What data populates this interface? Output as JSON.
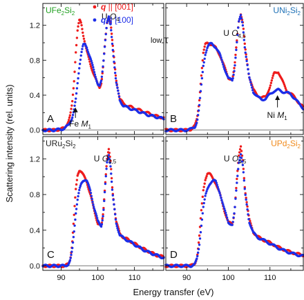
{
  "figure": {
    "ylabel": "Scattering intensity (rel. units)",
    "xlabel": "Energy transfer (eV)",
    "condition": "low T",
    "legend": [
      {
        "label": "q || [001]",
        "color": "#ee1c1c"
      },
      {
        "label": "q || [100]",
        "color": "#1d2ee8"
      }
    ],
    "x_ticks": [
      "90",
      "100",
      "110"
    ],
    "y_ticks": [
      "0.0",
      "0.4",
      "0.8",
      "1.2"
    ]
  },
  "chart_data": [
    {
      "type": "scatter",
      "panel_letter": "A",
      "compound": {
        "base": "UFe",
        "sub": "2",
        "mid": "Si",
        "sub2": "2"
      },
      "compound_color": "#21a021",
      "xlim": [
        85,
        118
      ],
      "ylim": [
        -0.05,
        1.45
      ],
      "annotations": [
        {
          "text_main": "U ",
          "text_italic": "O",
          "text_sub": "4",
          "x": 101,
          "y": 1.27
        },
        {
          "text_main": "Fe ",
          "text_italic": "M",
          "text_sub": "1",
          "x": 92.2,
          "y": 0.04,
          "arrow_x": 93.9,
          "arrow_from": 0.14,
          "arrow_to": 0.26
        }
      ],
      "series": [
        {
          "name": "q || [001]",
          "color": "#ee1c1c",
          "x": [
            85,
            88,
            90,
            91,
            92,
            92.5,
            93,
            93.5,
            94,
            94.5,
            95,
            95.5,
            96,
            97,
            98,
            99,
            100,
            100.5,
            101,
            101.5,
            102,
            102.5,
            103,
            103.5,
            104,
            105,
            106,
            107,
            108,
            110,
            112,
            114,
            116,
            118
          ],
          "y": [
            0.0,
            0.0,
            0.01,
            0.03,
            0.1,
            0.17,
            0.3,
            0.55,
            0.9,
            1.15,
            1.26,
            1.22,
            1.1,
            0.9,
            0.75,
            0.63,
            0.52,
            0.49,
            0.55,
            0.75,
            1.0,
            1.22,
            1.3,
            1.24,
            1.0,
            0.58,
            0.36,
            0.3,
            0.28,
            0.25,
            0.22,
            0.19,
            0.16,
            0.14
          ]
        },
        {
          "name": "q || [100]",
          "color": "#1d2ee8",
          "x": [
            85,
            88,
            90,
            91,
            92,
            93,
            93.5,
            94,
            94.5,
            95,
            95.5,
            96,
            96.5,
            97,
            98,
            99,
            100,
            100.5,
            101,
            101.5,
            102,
            102.5,
            103,
            103.5,
            104,
            105,
            106,
            107,
            108,
            110,
            112,
            114,
            116,
            118
          ],
          "y": [
            0.0,
            0.0,
            0.01,
            0.02,
            0.06,
            0.14,
            0.22,
            0.35,
            0.55,
            0.74,
            0.88,
            0.97,
            0.98,
            0.95,
            0.82,
            0.67,
            0.53,
            0.5,
            0.56,
            0.76,
            1.02,
            1.23,
            1.29,
            1.2,
            0.97,
            0.55,
            0.34,
            0.28,
            0.26,
            0.23,
            0.2,
            0.17,
            0.15,
            0.13
          ]
        }
      ]
    },
    {
      "type": "scatter",
      "panel_letter": "B",
      "compound": {
        "base": "UNi",
        "sub": "2",
        "mid": "Si",
        "sub2": "2"
      },
      "compound_color": "#1b6fb5",
      "xlim": [
        85,
        118
      ],
      "ylim": [
        -0.05,
        1.45
      ],
      "annotations": [
        {
          "text_main": "U ",
          "text_italic": "O",
          "text_sub": "4,5",
          "x": 98.8,
          "y": 1.08
        },
        {
          "text_main": "Ni ",
          "text_italic": "M",
          "text_sub": "1",
          "x": 109.3,
          "y": 0.14,
          "arrow_x": 111.8,
          "arrow_from": 0.26,
          "arrow_to": 0.4
        }
      ],
      "series": [
        {
          "name": "q || [001]",
          "color": "#ee1c1c",
          "x": [
            85,
            88,
            90,
            91,
            92,
            92.5,
            93,
            93.5,
            94,
            94.5,
            95,
            95.5,
            96,
            97,
            98,
            99,
            100,
            101,
            101.5,
            102,
            102.5,
            103,
            103.5,
            104,
            105,
            106,
            107,
            108,
            109,
            110,
            111,
            112,
            113,
            114,
            115,
            116,
            117,
            118
          ],
          "y": [
            0.0,
            0.0,
            0.0,
            0.01,
            0.05,
            0.13,
            0.32,
            0.62,
            0.88,
            0.98,
            1.0,
            0.99,
            0.98,
            0.94,
            0.86,
            0.73,
            0.6,
            0.58,
            0.72,
            1.0,
            1.25,
            1.33,
            1.22,
            0.95,
            0.62,
            0.46,
            0.4,
            0.37,
            0.38,
            0.5,
            0.65,
            0.67,
            0.56,
            0.45,
            0.42,
            0.37,
            0.31,
            0.26
          ]
        },
        {
          "name": "q || [100]",
          "color": "#1d2ee8",
          "x": [
            85,
            88,
            90,
            91,
            92,
            92.5,
            93,
            93.5,
            94,
            94.5,
            95,
            95.5,
            96,
            97,
            98,
            99,
            100,
            101,
            101.5,
            102,
            102.5,
            103,
            103.5,
            104,
            105,
            106,
            107,
            108,
            109,
            110,
            111,
            112,
            113,
            114,
            115,
            116,
            117,
            118
          ],
          "y": [
            0.0,
            0.0,
            0.0,
            0.01,
            0.04,
            0.1,
            0.25,
            0.5,
            0.74,
            0.88,
            0.95,
            0.98,
            0.99,
            0.95,
            0.86,
            0.72,
            0.59,
            0.57,
            0.71,
            0.98,
            1.23,
            1.31,
            1.2,
            0.93,
            0.6,
            0.44,
            0.38,
            0.35,
            0.36,
            0.41,
            0.45,
            0.46,
            0.44,
            0.43,
            0.41,
            0.36,
            0.3,
            0.25
          ]
        }
      ]
    },
    {
      "type": "scatter",
      "panel_letter": "C",
      "compound": {
        "base": "URu",
        "sub": "2",
        "mid": "Si",
        "sub2": "2"
      },
      "compound_color": "#222222",
      "xlim": [
        85,
        118
      ],
      "ylim": [
        -0.05,
        1.45
      ],
      "annotations": [
        {
          "text_main": "U ",
          "text_italic": "O",
          "text_sub": "4,5",
          "x": 98.9,
          "y": 1.17
        }
      ],
      "series": [
        {
          "name": "q || [001]",
          "color": "#ee1c1c",
          "x": [
            85,
            88,
            90,
            91,
            92,
            92.5,
            93,
            93.5,
            94,
            94.5,
            95,
            95.5,
            96,
            97,
            98,
            99,
            100,
            101,
            101.5,
            102,
            102.5,
            103,
            103.5,
            104,
            105,
            106,
            107,
            108,
            110,
            112,
            114,
            116,
            118
          ],
          "y": [
            0.0,
            0.0,
            0.0,
            0.0,
            0.02,
            0.08,
            0.25,
            0.55,
            0.85,
            1.02,
            1.08,
            1.06,
            1.02,
            0.94,
            0.8,
            0.62,
            0.48,
            0.44,
            0.6,
            0.92,
            1.2,
            1.3,
            1.16,
            0.85,
            0.5,
            0.36,
            0.32,
            0.3,
            0.25,
            0.2,
            0.16,
            0.12,
            0.1
          ]
        },
        {
          "name": "q || [100]",
          "color": "#1d2ee8",
          "x": [
            85,
            88,
            90,
            91,
            92,
            92.5,
            93,
            93.5,
            94,
            94.5,
            95,
            95.5,
            96,
            96.5,
            97,
            98,
            99,
            100,
            101,
            101.5,
            102,
            102.5,
            103,
            103.5,
            104,
            105,
            106,
            107,
            108,
            110,
            112,
            114,
            116,
            118
          ],
          "y": [
            0.0,
            0.0,
            0.0,
            0.0,
            0.02,
            0.06,
            0.17,
            0.38,
            0.6,
            0.75,
            0.85,
            0.92,
            0.96,
            0.97,
            0.95,
            0.84,
            0.65,
            0.5,
            0.45,
            0.58,
            0.88,
            1.15,
            1.25,
            1.12,
            0.82,
            0.48,
            0.35,
            0.31,
            0.29,
            0.24,
            0.19,
            0.15,
            0.12,
            0.09
          ]
        }
      ]
    },
    {
      "type": "scatter",
      "panel_letter": "D",
      "compound": {
        "base": "UPd",
        "sub": "2",
        "mid": "Si",
        "sub2": "2"
      },
      "compound_color": "#f08a1c",
      "xlim": [
        85,
        118
      ],
      "ylim": [
        -0.05,
        1.45
      ],
      "annotations": [
        {
          "text_main": "U ",
          "text_italic": "O",
          "text_sub": "4,5",
          "x": 98.9,
          "y": 1.17
        }
      ],
      "series": [
        {
          "name": "q || [001]",
          "color": "#ee1c1c",
          "x": [
            85,
            88,
            90,
            91,
            92,
            92.5,
            93,
            93.5,
            94,
            94.5,
            95,
            95.5,
            96,
            97,
            98,
            99,
            100,
            101,
            101.5,
            102,
            102.5,
            103,
            103.5,
            104,
            105,
            106,
            107,
            108,
            110,
            112,
            114,
            116,
            118
          ],
          "y": [
            0.0,
            0.0,
            0.0,
            0.0,
            0.03,
            0.1,
            0.3,
            0.6,
            0.85,
            0.98,
            1.04,
            1.03,
            1.0,
            0.93,
            0.8,
            0.63,
            0.49,
            0.46,
            0.62,
            0.95,
            1.22,
            1.33,
            1.18,
            0.86,
            0.52,
            0.38,
            0.33,
            0.3,
            0.26,
            0.21,
            0.17,
            0.14,
            0.12
          ]
        },
        {
          "name": "q || [100]",
          "color": "#1d2ee8",
          "x": [
            85,
            88,
            90,
            91,
            92,
            92.5,
            93,
            93.5,
            94,
            94.5,
            95,
            95.5,
            96,
            96.5,
            97,
            98,
            99,
            100,
            101,
            101.5,
            102,
            102.5,
            103,
            103.5,
            104,
            105,
            106,
            107,
            108,
            110,
            112,
            114,
            116,
            118
          ],
          "y": [
            0.0,
            0.0,
            0.0,
            0.0,
            0.02,
            0.08,
            0.22,
            0.45,
            0.66,
            0.78,
            0.86,
            0.92,
            0.95,
            0.96,
            0.94,
            0.82,
            0.64,
            0.49,
            0.46,
            0.6,
            0.9,
            1.16,
            1.26,
            1.12,
            0.82,
            0.5,
            0.37,
            0.32,
            0.3,
            0.25,
            0.2,
            0.16,
            0.13,
            0.11
          ]
        }
      ]
    }
  ]
}
